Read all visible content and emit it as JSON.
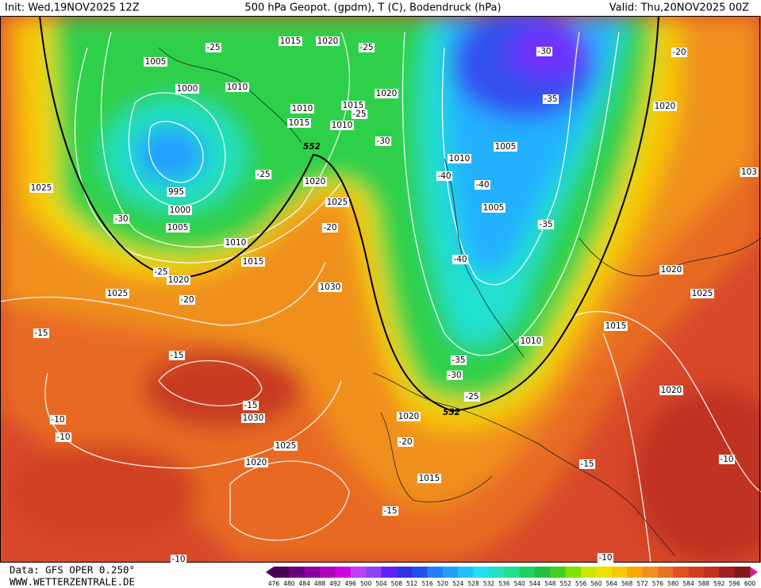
{
  "header": {
    "init": "Init: Wed,19NOV2025 12Z",
    "title": "500 hPa Geopot. (gpdm), T (C), Bodendruck (hPa)",
    "valid": "Valid: Thu,20NOV2025 00Z"
  },
  "footer": {
    "data": "Data: GFS OPER 0.250°",
    "site": "WWW.WETTERZENTRALE.DE"
  },
  "colorbar": {
    "ticks": [
      476,
      480,
      484,
      488,
      492,
      496,
      500,
      504,
      508,
      512,
      516,
      520,
      524,
      528,
      532,
      536,
      540,
      544,
      548,
      552,
      556,
      560,
      564,
      568,
      572,
      576,
      580,
      584,
      588,
      592,
      596,
      600
    ],
    "colors": [
      "#4b0055",
      "#6a0080",
      "#8a00a0",
      "#b000c0",
      "#d000e0",
      "#c040ff",
      "#9040ff",
      "#6020ff",
      "#3030e0",
      "#2050f0",
      "#2080ff",
      "#20a0ff",
      "#20c0ff",
      "#20e0f0",
      "#20e0c0",
      "#20e090",
      "#20d060",
      "#20c040",
      "#40d020",
      "#80e000",
      "#c8e800",
      "#f0e000",
      "#f8c800",
      "#f8a800",
      "#f09020",
      "#e87020",
      "#e05020",
      "#d04020",
      "#c03020",
      "#a02020",
      "#801818"
    ]
  },
  "map_labels": {
    "pressure": [
      "1015",
      "1020",
      "1005",
      "1000",
      "1010",
      "1010",
      "1015",
      "1015",
      "1010",
      "1020",
      "1005",
      "1010",
      "1005",
      "1020",
      "1025",
      "995",
      "1000",
      "1005",
      "1010",
      "1015",
      "1020",
      "1025",
      "1020",
      "1025",
      "1030",
      "1020",
      "1025",
      "1015",
      "1010",
      "1020",
      "1030",
      "1025",
      "1020",
      "1020",
      "1015",
      "103"
    ],
    "temperature": [
      "-25",
      "-25",
      "-30",
      "-20",
      "-35",
      "-25",
      "-30",
      "-25",
      "-40",
      "-40",
      "-30",
      "-20",
      "-35",
      "-40",
      "-25",
      "-20",
      "-15",
      "-15",
      "-35",
      "-30",
      "-25",
      "-15",
      "-10",
      "-10",
      "-20",
      "-15",
      "-10",
      "-15",
      "-10",
      "-10"
    ],
    "geopotential": [
      "552",
      "552"
    ]
  }
}
